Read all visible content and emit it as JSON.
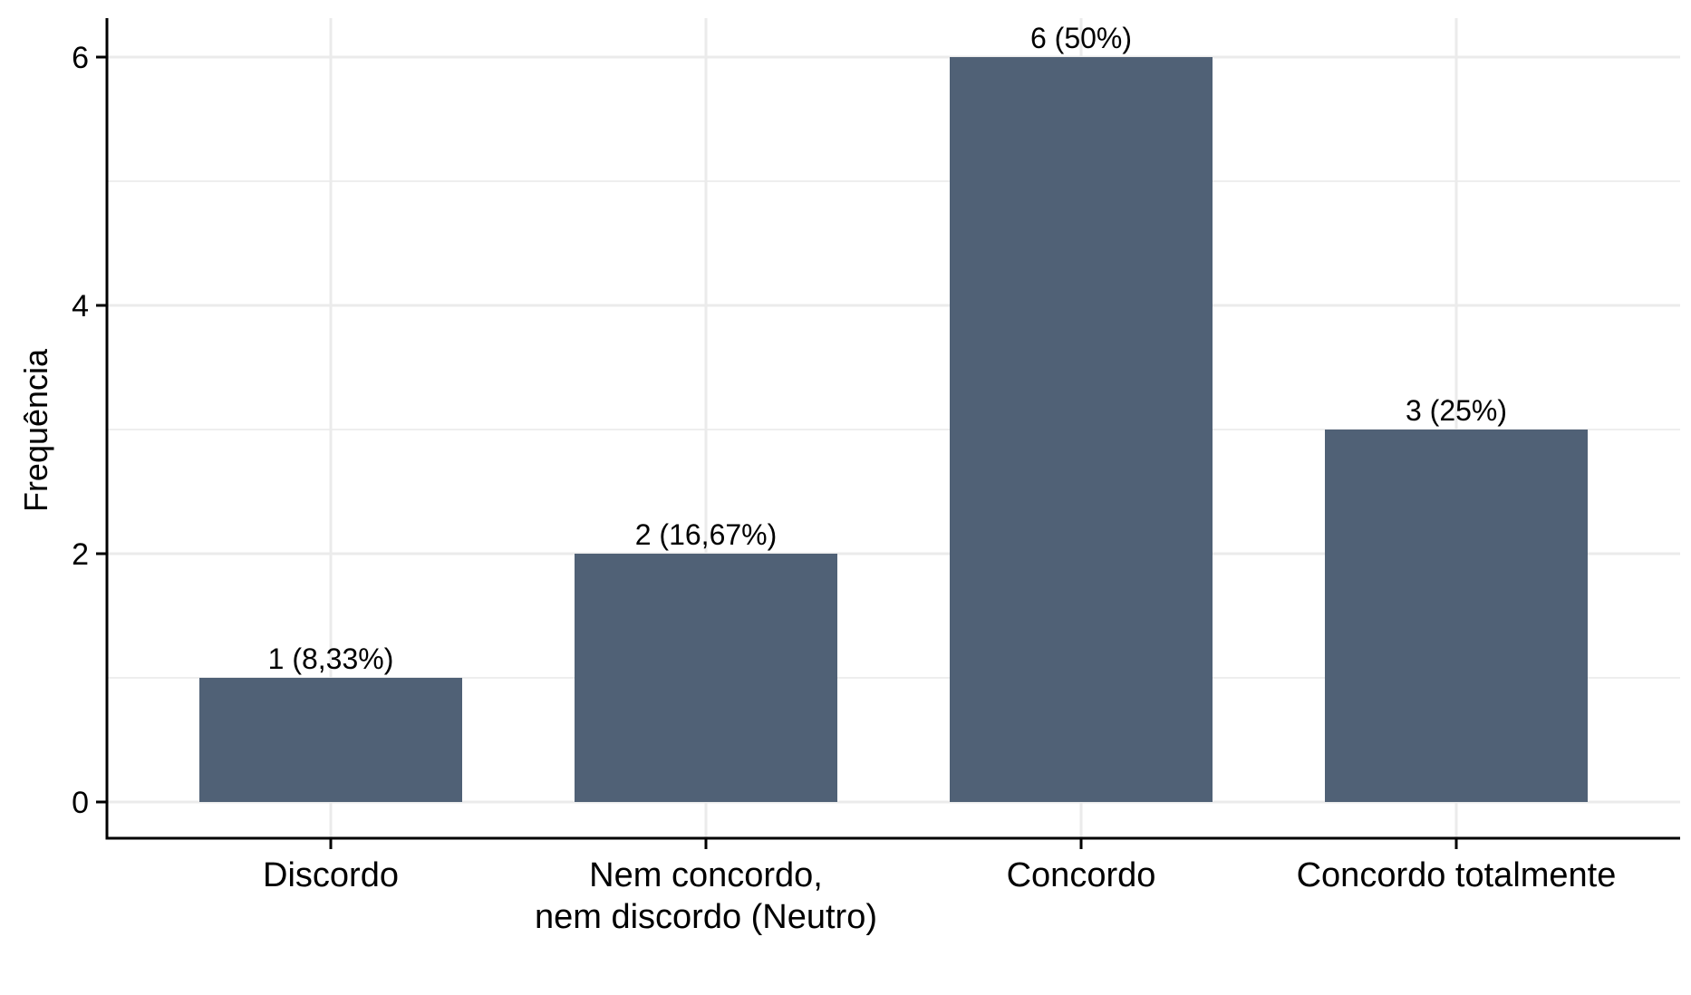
{
  "chart_data": {
    "type": "bar",
    "categories": [
      "Discordo",
      "Nem concordo,\nnem discordo (Neutro)",
      "Concordo",
      "Concordo totalmente"
    ],
    "values": [
      1,
      2,
      6,
      3
    ],
    "data_labels": [
      "1 (8,33%)",
      "2 (16,67%)",
      "6 (50%)",
      "3 (25%)"
    ],
    "title": "",
    "xlabel": "",
    "ylabel": "Frequência",
    "ylim": [
      0,
      6
    ],
    "yticks": [
      0,
      2,
      4,
      6
    ],
    "grid": true,
    "bar_color": "#506176",
    "grid_color": "#ebebeb"
  }
}
